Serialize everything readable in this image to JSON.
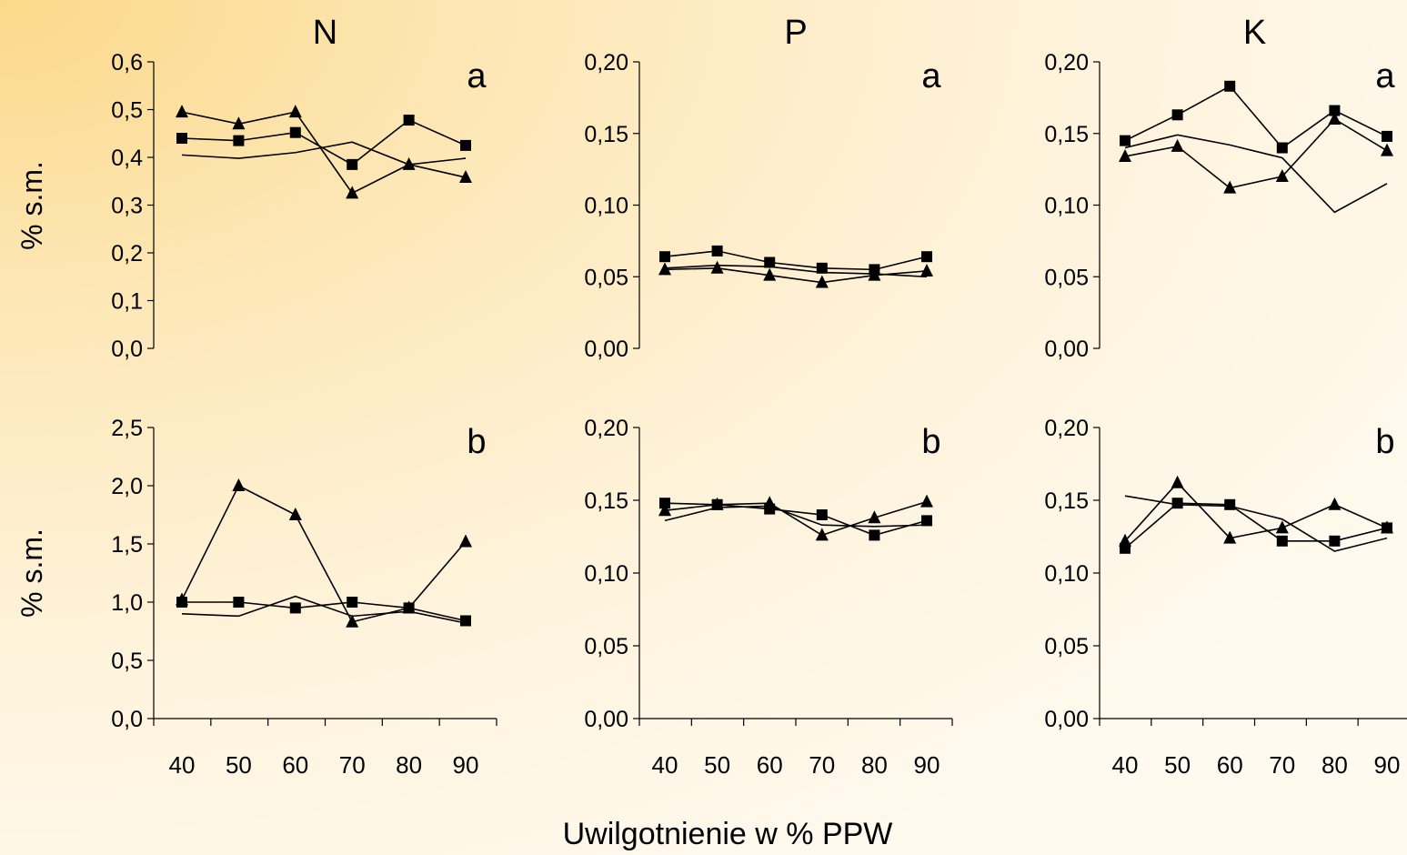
{
  "figure": {
    "xlabel": "Uwilgotnienie w % PPW",
    "ylabel": "% s.m."
  },
  "chart_data": [
    {
      "type": "line",
      "column_title": "N",
      "panel_label": "a",
      "x": [
        "40",
        "50",
        "60",
        "70",
        "80",
        "90"
      ],
      "ylim": [
        0,
        0.6
      ],
      "yticks": [
        "0,0",
        "0,1",
        "0,2",
        "0,3",
        "0,4",
        "0,5",
        "0,6"
      ],
      "series": [
        {
          "marker": "square",
          "values": [
            0.44,
            0.435,
            0.452,
            0.385,
            0.478,
            0.425
          ]
        },
        {
          "marker": "triangle",
          "values": [
            0.495,
            0.47,
            0.495,
            0.325,
            0.385,
            0.358
          ]
        },
        {
          "marker": "none",
          "values": [
            0.405,
            0.398,
            0.41,
            0.432,
            0.385,
            0.398
          ]
        }
      ]
    },
    {
      "type": "line",
      "column_title": "P",
      "panel_label": "a",
      "x": [
        "40",
        "50",
        "60",
        "70",
        "80",
        "90"
      ],
      "ylim": [
        0,
        0.2
      ],
      "yticks": [
        "0,00",
        "0,05",
        "0,10",
        "0,15",
        "0,20"
      ],
      "series": [
        {
          "marker": "square",
          "values": [
            0.064,
            0.068,
            0.06,
            0.056,
            0.055,
            0.064
          ]
        },
        {
          "marker": "triangle",
          "values": [
            0.055,
            0.056,
            0.051,
            0.046,
            0.051,
            0.054
          ]
        },
        {
          "marker": "none",
          "values": [
            0.056,
            0.058,
            0.057,
            0.053,
            0.052,
            0.05
          ]
        }
      ]
    },
    {
      "type": "line",
      "column_title": "K",
      "panel_label": "a",
      "x": [
        "40",
        "50",
        "60",
        "70",
        "80",
        "90"
      ],
      "ylim": [
        0,
        0.2
      ],
      "yticks": [
        "0,00",
        "0,05",
        "0,10",
        "0,15",
        "0,20"
      ],
      "series": [
        {
          "marker": "square",
          "values": [
            0.145,
            0.163,
            0.183,
            0.14,
            0.166,
            0.148
          ]
        },
        {
          "marker": "triangle",
          "values": [
            0.134,
            0.141,
            0.112,
            0.12,
            0.16,
            0.138
          ]
        },
        {
          "marker": "none",
          "values": [
            0.14,
            0.149,
            0.142,
            0.133,
            0.095,
            0.115
          ]
        }
      ]
    },
    {
      "type": "line",
      "column_title": "N",
      "panel_label": "b",
      "x": [
        "40",
        "50",
        "60",
        "70",
        "80",
        "90"
      ],
      "ylim": [
        0,
        2.5
      ],
      "yticks": [
        "0,0",
        "0,5",
        "1,0",
        "1,5",
        "2,0",
        "2,5"
      ],
      "series": [
        {
          "marker": "square",
          "values": [
            1.0,
            1.0,
            0.95,
            1.0,
            0.95,
            0.84
          ]
        },
        {
          "marker": "triangle",
          "values": [
            1.02,
            2.0,
            1.75,
            0.83,
            0.95,
            1.52
          ]
        },
        {
          "marker": "none",
          "values": [
            0.9,
            0.88,
            1.05,
            0.88,
            0.92,
            0.82
          ]
        }
      ]
    },
    {
      "type": "line",
      "column_title": "P",
      "panel_label": "b",
      "x": [
        "40",
        "50",
        "60",
        "70",
        "80",
        "90"
      ],
      "ylim": [
        0,
        0.2
      ],
      "yticks": [
        "0,00",
        "0,05",
        "0,10",
        "0,15",
        "0,20"
      ],
      "series": [
        {
          "marker": "square",
          "values": [
            0.148,
            0.147,
            0.144,
            0.14,
            0.126,
            0.136
          ]
        },
        {
          "marker": "triangle",
          "values": [
            0.143,
            0.147,
            0.148,
            0.126,
            0.138,
            0.149
          ]
        },
        {
          "marker": "none",
          "values": [
            0.136,
            0.145,
            0.146,
            0.133,
            0.132,
            0.133
          ]
        }
      ]
    },
    {
      "type": "line",
      "column_title": "K",
      "panel_label": "b",
      "x": [
        "40",
        "50",
        "60",
        "70",
        "80",
        "90"
      ],
      "ylim": [
        0,
        0.2
      ],
      "yticks": [
        "0,00",
        "0,05",
        "0,10",
        "0,15",
        "0,20"
      ],
      "series": [
        {
          "marker": "square",
          "values": [
            0.117,
            0.148,
            0.147,
            0.122,
            0.122,
            0.131
          ]
        },
        {
          "marker": "triangle",
          "values": [
            0.122,
            0.162,
            0.124,
            0.131,
            0.147,
            0.131
          ]
        },
        {
          "marker": "none",
          "values": [
            0.153,
            0.147,
            0.146,
            0.137,
            0.115,
            0.124
          ]
        }
      ]
    }
  ]
}
